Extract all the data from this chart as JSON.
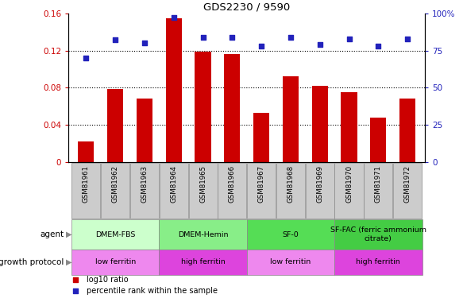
{
  "title": "GDS2230 / 9590",
  "samples": [
    "GSM81961",
    "GSM81962",
    "GSM81963",
    "GSM81964",
    "GSM81965",
    "GSM81966",
    "GSM81967",
    "GSM81968",
    "GSM81969",
    "GSM81970",
    "GSM81971",
    "GSM81972"
  ],
  "log10_ratio": [
    0.022,
    0.079,
    0.068,
    0.155,
    0.119,
    0.116,
    0.053,
    0.092,
    0.082,
    0.075,
    0.048,
    0.068
  ],
  "percentile_rank": [
    70,
    82,
    80,
    97,
    84,
    84,
    78,
    84,
    79,
    83,
    78,
    83
  ],
  "bar_color": "#cc0000",
  "dot_color": "#2222bb",
  "ylim_left": [
    0,
    0.16
  ],
  "ylim_right": [
    0,
    100
  ],
  "yticks_left": [
    0,
    0.04,
    0.08,
    0.12,
    0.16
  ],
  "yticks_right": [
    0,
    25,
    50,
    75,
    100
  ],
  "agent_groups": [
    {
      "label": "DMEM-FBS",
      "start": 0,
      "end": 3,
      "color": "#ccffcc"
    },
    {
      "label": "DMEM-Hemin",
      "start": 3,
      "end": 6,
      "color": "#88ee88"
    },
    {
      "label": "SF-0",
      "start": 6,
      "end": 9,
      "color": "#55dd55"
    },
    {
      "label": "SF-FAC (ferric ammonium\ncitrate)",
      "start": 9,
      "end": 12,
      "color": "#44cc44"
    }
  ],
  "growth_groups": [
    {
      "label": "low ferritin",
      "start": 0,
      "end": 3,
      "color": "#ee88ee"
    },
    {
      "label": "high ferritin",
      "start": 3,
      "end": 6,
      "color": "#dd44dd"
    },
    {
      "label": "low ferritin",
      "start": 6,
      "end": 9,
      "color": "#ee88ee"
    },
    {
      "label": "high ferritin",
      "start": 9,
      "end": 12,
      "color": "#dd44dd"
    }
  ],
  "agent_label": "agent",
  "growth_label": "growth protocol",
  "legend_bar_label": "log10 ratio",
  "legend_dot_label": "percentile rank within the sample",
  "sample_cell_color": "#cccccc",
  "sample_cell_border": "#888888"
}
